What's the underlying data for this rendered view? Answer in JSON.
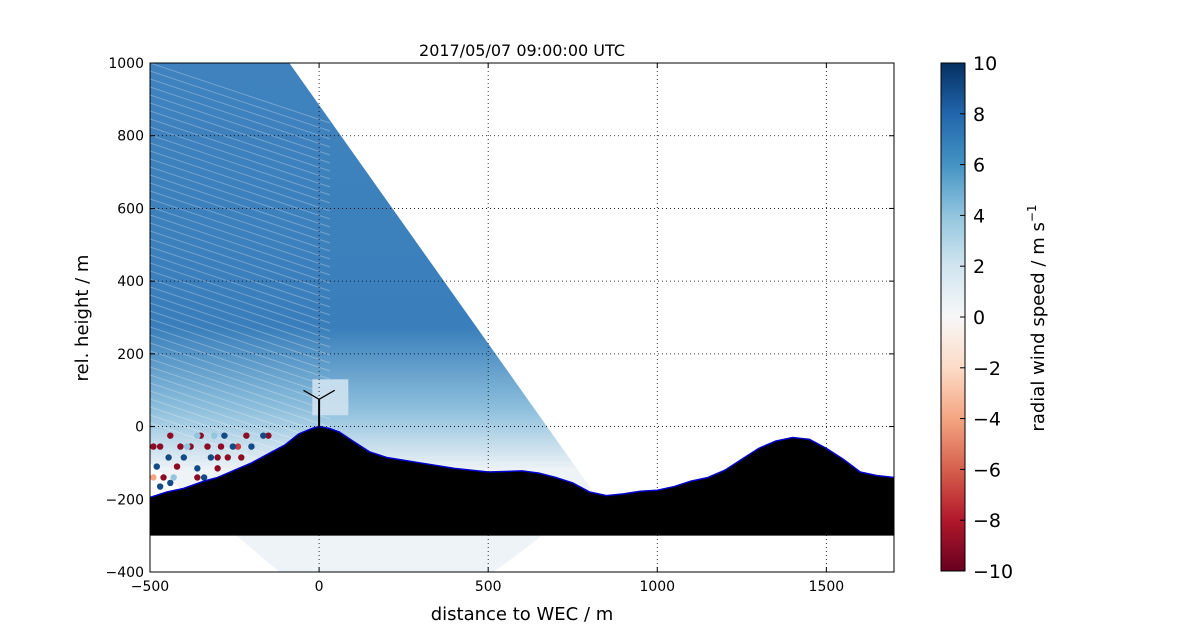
{
  "chart_data": {
    "type": "heatmap",
    "title": "2017/05/07 09:00:00 UTC",
    "xlabel": "distance to WEC / m",
    "ylabel": "rel. height / m",
    "xlim": [
      -500,
      1700
    ],
    "ylim": [
      -400,
      1000
    ],
    "x_ticks": [
      -500,
      0,
      500,
      1000,
      1500
    ],
    "x_tick_labels": [
      "−500",
      "0",
      "500",
      "1000",
      "1500"
    ],
    "y_ticks": [
      -400,
      -200,
      0,
      200,
      400,
      600,
      800,
      1000
    ],
    "y_tick_labels": [
      "−400",
      "−200",
      "0",
      "200",
      "400",
      "600",
      "800",
      "1000"
    ],
    "grid": true,
    "colorbar": {
      "label": "radial wind speed / m s",
      "label_superscript": "−1",
      "range": [
        -10,
        10
      ],
      "ticks": [
        10,
        8,
        6,
        4,
        2,
        0,
        -2,
        -4,
        -6,
        -8,
        -10
      ],
      "tick_labels": [
        "10",
        "8",
        "6",
        "4",
        "2",
        "0",
        "−2",
        "−4",
        "−6",
        "−8",
        "−10"
      ],
      "colormap": [
        "#67001f",
        "#b2182b",
        "#d6604d",
        "#f4a582",
        "#fddbc7",
        "#f7f7f7",
        "#d1e5f0",
        "#92c5de",
        "#4393c3",
        "#2166ac",
        "#053061"
      ]
    },
    "scan_sector": {
      "apex": [
        -500,
        1000
      ],
      "max_range_m": 1815,
      "dominant_speed": 6,
      "near_ground_speed": 3
    },
    "terrain_profile": {
      "x": [
        -500,
        -450,
        -400,
        -340,
        -300,
        -250,
        -200,
        -150,
        -100,
        -60,
        -20,
        0,
        30,
        60,
        100,
        150,
        200,
        300,
        400,
        500,
        600,
        650,
        700,
        750,
        800,
        850,
        900,
        950,
        1000,
        1050,
        1100,
        1150,
        1200,
        1250,
        1300,
        1350,
        1400,
        1450,
        1500,
        1550,
        1600,
        1650,
        1700
      ],
      "y": [
        -195,
        -180,
        -170,
        -150,
        -140,
        -120,
        -100,
        -75,
        -50,
        -20,
        -5,
        0,
        -5,
        -15,
        -40,
        -70,
        -85,
        -100,
        -115,
        -125,
        -122,
        -128,
        -140,
        -155,
        -180,
        -190,
        -185,
        -178,
        -175,
        -165,
        -150,
        -140,
        -120,
        -90,
        -60,
        -40,
        -30,
        -35,
        -60,
        -90,
        -125,
        -135,
        -140
      ],
      "base_y": -300,
      "fill_color": "#000000",
      "outline_color": "#0000cc"
    },
    "wind_turbine": {
      "x": 0,
      "hub_height": 75
    },
    "scatter_points": [
      {
        "x": -490,
        "y": -55,
        "v": -9
      },
      {
        "x": -470,
        "y": -55,
        "v": -9
      },
      {
        "x": -440,
        "y": -25,
        "v": -9
      },
      {
        "x": -410,
        "y": -55,
        "v": -9
      },
      {
        "x": -380,
        "y": -55,
        "v": -9
      },
      {
        "x": -350,
        "y": -25,
        "v": -9
      },
      {
        "x": -330,
        "y": -55,
        "v": -9
      },
      {
        "x": -300,
        "y": -85,
        "v": -9
      },
      {
        "x": -270,
        "y": -85,
        "v": -9
      },
      {
        "x": -240,
        "y": -55,
        "v": -7
      },
      {
        "x": -215,
        "y": -25,
        "v": -9
      },
      {
        "x": -150,
        "y": -25,
        "v": -9
      },
      {
        "x": -460,
        "y": -140,
        "v": -9
      },
      {
        "x": -420,
        "y": -110,
        "v": -9
      },
      {
        "x": -360,
        "y": -140,
        "v": -9
      },
      {
        "x": -300,
        "y": -115,
        "v": -9
      },
      {
        "x": -230,
        "y": -85,
        "v": -9
      },
      {
        "x": -290,
        "y": -55,
        "v": -9
      },
      {
        "x": -480,
        "y": -110,
        "v": 9
      },
      {
        "x": -445,
        "y": -85,
        "v": 9
      },
      {
        "x": -400,
        "y": -85,
        "v": 9
      },
      {
        "x": -360,
        "y": -115,
        "v": 9
      },
      {
        "x": -320,
        "y": -85,
        "v": 9
      },
      {
        "x": -280,
        "y": -25,
        "v": 9
      },
      {
        "x": -255,
        "y": -55,
        "v": 9
      },
      {
        "x": -200,
        "y": -55,
        "v": 9
      },
      {
        "x": -165,
        "y": -25,
        "v": 9
      },
      {
        "x": -470,
        "y": -165,
        "v": 9
      },
      {
        "x": -440,
        "y": -155,
        "v": 9
      },
      {
        "x": -340,
        "y": -140,
        "v": 9
      },
      {
        "x": -390,
        "y": -55,
        "v": 4
      },
      {
        "x": -360,
        "y": -25,
        "v": 4
      },
      {
        "x": -310,
        "y": -25,
        "v": 4
      },
      {
        "x": -430,
        "y": -140,
        "v": 4
      },
      {
        "x": -490,
        "y": -140,
        "v": -4
      }
    ]
  }
}
